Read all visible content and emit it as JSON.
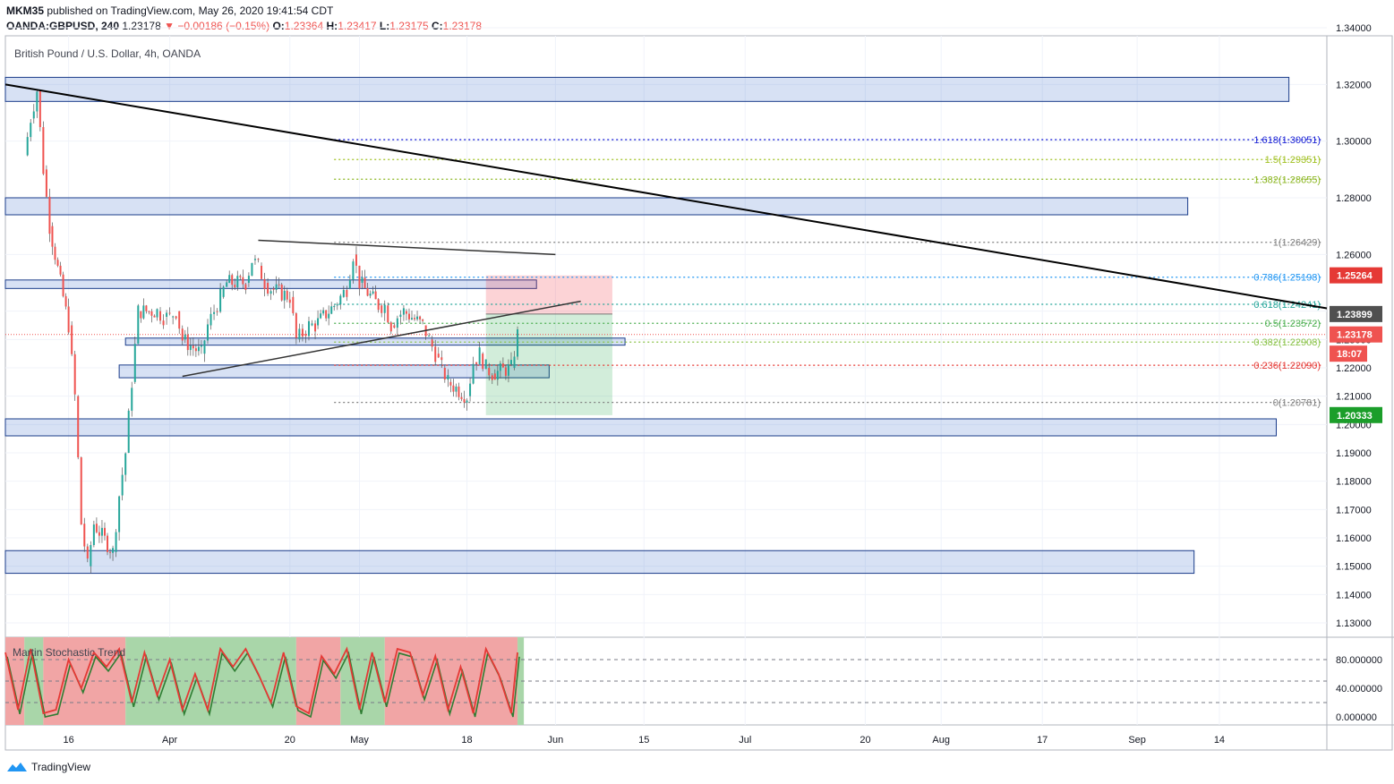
{
  "header": {
    "author": "MKM35",
    "published_text": " published on TradingView.com, May 26, 2020 19:41:54 CDT",
    "symbol": "OANDA:GBPUSD, 240",
    "last": "1.23178",
    "change": "−0.00186 (−0.15%)",
    "o_label": "O:",
    "o_value": "1.23364",
    "h_label": "H:",
    "h_value": "1.23417",
    "l_label": "L:",
    "l_value": "1.23175",
    "c_label": "C:",
    "c_value": "1.23178"
  },
  "chart_data": {
    "type": "candlestick",
    "title": "British Pound / U.S. Dollar, 4h, OANDA",
    "y_ticks": [
      "1.34000",
      "1.32000",
      "1.30000",
      "1.28000",
      "1.26000",
      "1.24000",
      "1.23000",
      "1.22000",
      "1.21000",
      "1.20000",
      "1.19000",
      "1.18000",
      "1.17000",
      "1.16000",
      "1.15000",
      "1.14000",
      "1.13000"
    ],
    "x_ticks": [
      "16",
      "Apr",
      "20",
      "May",
      "18",
      "Jun",
      "15",
      "Jul",
      "20",
      "Aug",
      "17",
      "Sep",
      "14"
    ],
    "price_path": [
      {
        "d": "2020-03-09",
        "p": 1.295
      },
      {
        "d": "2020-03-10",
        "p": 1.308
      },
      {
        "d": "2020-03-11",
        "p": 1.318
      },
      {
        "d": "2020-03-12",
        "p": 1.29
      },
      {
        "d": "2020-03-13",
        "p": 1.27
      },
      {
        "d": "2020-03-16",
        "p": 1.235
      },
      {
        "d": "2020-03-17",
        "p": 1.21
      },
      {
        "d": "2020-03-18",
        "p": 1.165
      },
      {
        "d": "2020-03-19",
        "p": 1.15
      },
      {
        "d": "2020-03-20",
        "p": 1.165
      },
      {
        "d": "2020-03-23",
        "p": 1.155
      },
      {
        "d": "2020-03-24",
        "p": 1.175
      },
      {
        "d": "2020-03-25",
        "p": 1.19
      },
      {
        "d": "2020-03-26",
        "p": 1.215
      },
      {
        "d": "2020-03-27",
        "p": 1.24
      },
      {
        "d": "2020-03-30",
        "p": 1.24
      },
      {
        "d": "2020-03-31",
        "p": 1.238
      },
      {
        "d": "2020-04-01",
        "p": 1.238
      },
      {
        "d": "2020-04-02",
        "p": 1.24
      },
      {
        "d": "2020-04-03",
        "p": 1.23
      },
      {
        "d": "2020-04-06",
        "p": 1.225
      },
      {
        "d": "2020-04-07",
        "p": 1.235
      },
      {
        "d": "2020-04-08",
        "p": 1.24
      },
      {
        "d": "2020-04-09",
        "p": 1.245
      },
      {
        "d": "2020-04-10",
        "p": 1.25
      },
      {
        "d": "2020-04-13",
        "p": 1.25
      },
      {
        "d": "2020-04-14",
        "p": 1.258
      },
      {
        "d": "2020-04-15",
        "p": 1.256
      },
      {
        "d": "2020-04-16",
        "p": 1.25
      },
      {
        "d": "2020-04-17",
        "p": 1.248
      },
      {
        "d": "2020-04-20",
        "p": 1.245
      },
      {
        "d": "2020-04-21",
        "p": 1.23
      },
      {
        "d": "2020-04-22",
        "p": 1.232
      },
      {
        "d": "2020-04-23",
        "p": 1.235
      },
      {
        "d": "2020-04-24",
        "p": 1.235
      },
      {
        "d": "2020-04-27",
        "p": 1.242
      },
      {
        "d": "2020-04-28",
        "p": 1.245
      },
      {
        "d": "2020-04-29",
        "p": 1.248
      },
      {
        "d": "2020-04-30",
        "p": 1.26
      },
      {
        "d": "2020-05-01",
        "p": 1.25
      },
      {
        "d": "2020-05-04",
        "p": 1.242
      },
      {
        "d": "2020-05-05",
        "p": 1.242
      },
      {
        "d": "2020-05-06",
        "p": 1.235
      },
      {
        "d": "2020-05-07",
        "p": 1.238
      },
      {
        "d": "2020-05-08",
        "p": 1.24
      },
      {
        "d": "2020-05-11",
        "p": 1.235
      },
      {
        "d": "2020-05-12",
        "p": 1.23
      },
      {
        "d": "2020-05-13",
        "p": 1.225
      },
      {
        "d": "2020-05-14",
        "p": 1.22
      },
      {
        "d": "2020-05-15",
        "p": 1.215
      },
      {
        "d": "2020-05-18",
        "p": 1.21
      },
      {
        "d": "2020-05-19",
        "p": 1.222
      },
      {
        "d": "2020-05-20",
        "p": 1.225
      },
      {
        "d": "2020-05-21",
        "p": 1.22
      },
      {
        "d": "2020-05-22",
        "p": 1.218
      },
      {
        "d": "2020-05-25",
        "p": 1.22
      },
      {
        "d": "2020-05-26",
        "p": 1.2318
      }
    ],
    "zones": [
      {
        "y1": 1.314,
        "y2": 1.3225,
        "x_end": "2020-09-25"
      },
      {
        "y1": 1.274,
        "y2": 1.28,
        "x_end": "2020-09-09"
      },
      {
        "y1": 1.248,
        "y2": 1.251,
        "x_end": "2020-05-29"
      },
      {
        "y1": 1.228,
        "y2": 1.2305,
        "x_start": "2020-03-25",
        "x_end": "2020-06-12"
      },
      {
        "y1": 1.2165,
        "y2": 1.221,
        "x_start": "2020-03-24",
        "x_end": "2020-05-31"
      },
      {
        "y1": 1.196,
        "y2": 1.202,
        "x_end": "2020-09-23"
      },
      {
        "y1": 1.1475,
        "y2": 1.1555,
        "x_end": "2020-09-10"
      }
    ],
    "fib_levels": [
      {
        "label": "1.618(1.30051)",
        "value": 1.30051,
        "color": "#1e26d6",
        "dotted": true
      },
      {
        "label": "1.5(1.29351)",
        "value": 1.29351,
        "color": "#a0c020",
        "dotted": true
      },
      {
        "label": "1.382(1.28655)",
        "value": 1.28655,
        "color": "#8ab51f",
        "dotted": true
      },
      {
        "label": "1(1.26429)",
        "value": 1.26429,
        "color": "#808080",
        "dotted": true
      },
      {
        "label": "0.786(1.25198)",
        "value": 1.25198,
        "color": "#2196f3",
        "dotted": true
      },
      {
        "label": "0.618(1.24241)",
        "value": 1.24241,
        "color": "#26a69a",
        "dotted": true
      },
      {
        "label": "0.5(1.23572)",
        "value": 1.23572,
        "color": "#4caf50",
        "dotted": true
      },
      {
        "label": "0.382(1.22908)",
        "value": 1.22908,
        "color": "#8bc34a",
        "dotted": true
      },
      {
        "label": "0.236(1.22090)",
        "value": 1.2209,
        "color": "#e53935",
        "dotted": true
      },
      {
        "label": "0(1.20781)",
        "value": 1.20781,
        "color": "#808080",
        "dotted": true
      }
    ],
    "fib_start": "2020-04-27",
    "trendlines": [
      {
        "x1": "2020-03-06",
        "y1": 1.32,
        "x2": "2020-10-01",
        "y2": 1.241,
        "color": "#000000",
        "width": 2
      },
      {
        "x1": "2020-04-15",
        "y1": 1.265,
        "x2": "2020-06-01",
        "y2": 1.26,
        "color": "#333333",
        "width": 1.5
      },
      {
        "x1": "2020-04-03",
        "y1": 1.217,
        "x2": "2020-06-05",
        "y2": 1.2435,
        "color": "#333333",
        "width": 1.5
      }
    ],
    "position": {
      "x_start": "2020-05-21",
      "x_end": "2020-06-10",
      "stop": 1.2526,
      "entry": 1.239,
      "target": 1.2033
    },
    "price_labels": [
      {
        "text": "1.25264",
        "value": 1.25264,
        "bg": "#e53935"
      },
      {
        "text": "1.23899",
        "value": 1.23899,
        "bg": "#505050"
      },
      {
        "text": "1.23178",
        "value": 1.23178,
        "bg": "#ef5350"
      },
      {
        "text": "18:07",
        "value": 1.225,
        "bg": "#ef5350"
      },
      {
        "text": "1.20333",
        "value": 1.20333,
        "bg": "#1b9e2a"
      }
    ],
    "current_price": 1.23178,
    "indicator": {
      "name": "Martin Stochastic Trend",
      "y_ticks": [
        "80.000000",
        "40.000000",
        "0.000000"
      ],
      "y_tick_values": [
        80,
        40,
        0
      ],
      "levels": [
        80,
        50,
        20
      ],
      "bands": [
        {
          "x1": "2020-03-06",
          "x2": "2020-03-09",
          "color": "#f1a5a5"
        },
        {
          "x1": "2020-03-09",
          "x2": "2020-03-12",
          "color": "#a9d6a9"
        },
        {
          "x1": "2020-03-12",
          "x2": "2020-03-25",
          "color": "#f1a5a5"
        },
        {
          "x1": "2020-03-25",
          "x2": "2020-04-21",
          "color": "#a9d6a9"
        },
        {
          "x1": "2020-04-21",
          "x2": "2020-04-28",
          "color": "#f1a5a5"
        },
        {
          "x1": "2020-04-28",
          "x2": "2020-05-05",
          "color": "#a9d6a9"
        },
        {
          "x1": "2020-05-05",
          "x2": "2020-05-26",
          "color": "#f1a5a5"
        },
        {
          "x1": "2020-05-26",
          "x2": "2020-05-27",
          "color": "#a9d6a9"
        }
      ],
      "stoch_path": [
        {
          "d": "2020-03-06",
          "v": 90
        },
        {
          "d": "2020-03-08",
          "v": 10
        },
        {
          "d": "2020-03-10",
          "v": 95
        },
        {
          "d": "2020-03-12",
          "v": 5
        },
        {
          "d": "2020-03-14",
          "v": 10
        },
        {
          "d": "2020-03-16",
          "v": 80
        },
        {
          "d": "2020-03-18",
          "v": 40
        },
        {
          "d": "2020-03-20",
          "v": 90
        },
        {
          "d": "2020-03-22",
          "v": 70
        },
        {
          "d": "2020-03-24",
          "v": 95
        },
        {
          "d": "2020-03-26",
          "v": 20
        },
        {
          "d": "2020-03-28",
          "v": 90
        },
        {
          "d": "2020-03-30",
          "v": 30
        },
        {
          "d": "2020-04-01",
          "v": 80
        },
        {
          "d": "2020-04-03",
          "v": 10
        },
        {
          "d": "2020-04-05",
          "v": 60
        },
        {
          "d": "2020-04-07",
          "v": 10
        },
        {
          "d": "2020-04-09",
          "v": 95
        },
        {
          "d": "2020-04-11",
          "v": 70
        },
        {
          "d": "2020-04-13",
          "v": 95
        },
        {
          "d": "2020-04-15",
          "v": 60
        },
        {
          "d": "2020-04-17",
          "v": 20
        },
        {
          "d": "2020-04-19",
          "v": 90
        },
        {
          "d": "2020-04-21",
          "v": 15
        },
        {
          "d": "2020-04-23",
          "v": 5
        },
        {
          "d": "2020-04-25",
          "v": 85
        },
        {
          "d": "2020-04-27",
          "v": 60
        },
        {
          "d": "2020-04-29",
          "v": 95
        },
        {
          "d": "2020-05-01",
          "v": 10
        },
        {
          "d": "2020-05-03",
          "v": 90
        },
        {
          "d": "2020-05-05",
          "v": 20
        },
        {
          "d": "2020-05-07",
          "v": 95
        },
        {
          "d": "2020-05-09",
          "v": 90
        },
        {
          "d": "2020-05-11",
          "v": 30
        },
        {
          "d": "2020-05-13",
          "v": 85
        },
        {
          "d": "2020-05-15",
          "v": 10
        },
        {
          "d": "2020-05-17",
          "v": 70
        },
        {
          "d": "2020-05-19",
          "v": 5
        },
        {
          "d": "2020-05-21",
          "v": 95
        },
        {
          "d": "2020-05-23",
          "v": 60
        },
        {
          "d": "2020-05-25",
          "v": 5
        },
        {
          "d": "2020-05-26",
          "v": 90
        }
      ]
    }
  },
  "footer": {
    "brand": "TradingView"
  }
}
